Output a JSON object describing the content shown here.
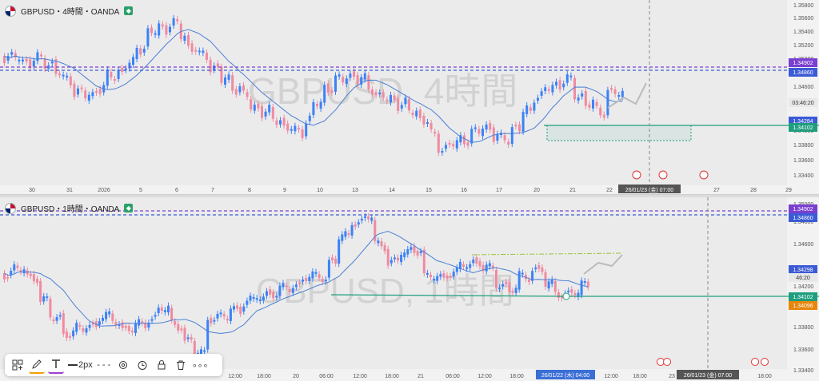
{
  "top": {
    "symbol": "GBPUSD・4時間・OANDA",
    "watermark": "GBPUSD, 4時間",
    "price_ticks": [
      "1.35800",
      "1.35600",
      "1.35400",
      "1.35200",
      "1.35000",
      "1.34600",
      "1.34400",
      "1.34000",
      "1.33800",
      "1.33600",
      "1.33400"
    ],
    "labels": {
      "l1": "1.34902",
      "l2": "1.34860",
      "l3": "03:46:20",
      "l4": "1.34284",
      "l5": "1.34102"
    },
    "date_ticks": [
      "30",
      "31",
      "2026",
      "5",
      "6",
      "7",
      "8",
      "9",
      "10",
      "13",
      "14",
      "15",
      "16",
      "17",
      "20",
      "21",
      "22",
      "26",
      "27",
      "28",
      "29"
    ],
    "date_cursor": "26/01/23 (金)  07:00"
  },
  "bottom": {
    "symbol": "GBPUSD・1時間・OANDA",
    "watermark": "GBPUSD, 1時間",
    "price_ticks": [
      "1.35000",
      "1.34800",
      "1.34600",
      "1.34200",
      "1.34000",
      "1.33800",
      "1.33600",
      "1.33400"
    ],
    "labels": {
      "l1": "1.34902",
      "l2": "1.34860",
      "l3": "1.34298",
      "l4": "46:20",
      "l5": "1.34102",
      "l6": "1.34096"
    },
    "time_ticks": [
      "12:00",
      "18:00",
      "20",
      "06:00",
      "12:00",
      "18:00",
      "21",
      "06:00",
      "12:00",
      "18:00",
      "12:00",
      "18:00",
      "23",
      "18:00"
    ],
    "time_cursor_left": "26/01/22 (木)  04:00",
    "time_cursor_right": "26/01/23 (金)  07:00"
  },
  "toolbar": {
    "width_label": "2px",
    "dash_label": "- - -",
    "more_label": "∘∘∘"
  },
  "colors": {
    "bull": "#3b82f6",
    "bear": "#f08aa0",
    "ma": "#4a7fd6",
    "res": "#7a3fd1",
    "sup": "#1e9e7e"
  }
}
